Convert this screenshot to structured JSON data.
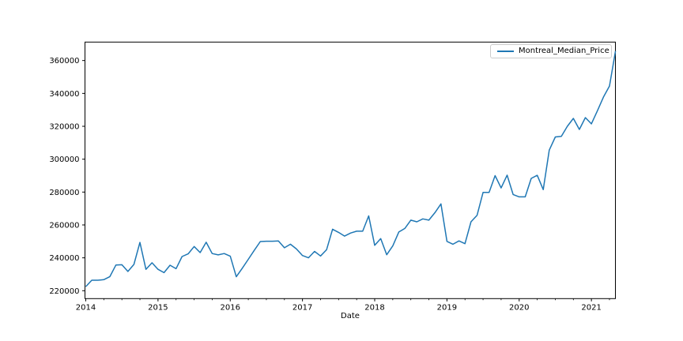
{
  "figure": {
    "background_color": "#ffffff",
    "spine_color": "#000000"
  },
  "legend": {
    "label": "Montreal_Median_Price",
    "position": "upper right",
    "border_color": "#cccccc"
  },
  "chart_data": {
    "type": "line",
    "title": "",
    "xlabel": "Date",
    "ylabel": "",
    "grid": false,
    "legend_position": "upper right",
    "line_color": "#1f77b4",
    "ylim": [
      215000,
      371000
    ],
    "yticks": [
      220000,
      240000,
      260000,
      280000,
      300000,
      320000,
      340000,
      360000
    ],
    "xticks": [
      "2014",
      "2015",
      "2016",
      "2017",
      "2018",
      "2019",
      "2020",
      "2021"
    ],
    "x_minor_tick_interval_months": 3,
    "series": [
      {
        "name": "Montreal_Median_Price",
        "x": [
          "2014-01",
          "2014-02",
          "2014-03",
          "2014-04",
          "2014-05",
          "2014-06",
          "2014-07",
          "2014-08",
          "2014-09",
          "2014-10",
          "2014-11",
          "2014-12",
          "2015-01",
          "2015-02",
          "2015-03",
          "2015-04",
          "2015-05",
          "2015-06",
          "2015-07",
          "2015-08",
          "2015-09",
          "2015-10",
          "2015-11",
          "2015-12",
          "2016-01",
          "2016-02",
          "2016-03",
          "2016-04",
          "2016-05",
          "2016-06",
          "2016-07",
          "2016-08",
          "2016-09",
          "2016-10",
          "2016-11",
          "2016-12",
          "2017-01",
          "2017-02",
          "2017-03",
          "2017-04",
          "2017-05",
          "2017-06",
          "2017-07",
          "2017-08",
          "2017-09",
          "2017-10",
          "2017-11",
          "2017-12",
          "2018-01",
          "2018-02",
          "2018-03",
          "2018-04",
          "2018-05",
          "2018-06",
          "2018-07",
          "2018-08",
          "2018-09",
          "2018-10",
          "2018-11",
          "2018-12",
          "2019-01",
          "2019-02",
          "2019-03",
          "2019-04",
          "2019-05",
          "2019-06",
          "2019-07",
          "2019-08",
          "2019-09",
          "2019-10",
          "2019-11",
          "2019-12",
          "2020-01",
          "2020-02",
          "2020-03",
          "2020-04",
          "2020-05",
          "2020-06",
          "2020-07",
          "2020-08",
          "2020-09",
          "2020-10",
          "2020-11",
          "2020-12",
          "2021-01",
          "2021-02",
          "2021-03",
          "2021-04",
          "2021-05"
        ],
        "values": [
          222500,
          226400,
          226400,
          226700,
          228600,
          235600,
          235800,
          231700,
          236000,
          249400,
          233000,
          237000,
          233000,
          231000,
          235500,
          233400,
          240800,
          242400,
          246900,
          243200,
          249500,
          242600,
          241800,
          242600,
          241000,
          228500,
          233700,
          239100,
          244600,
          249900,
          250100,
          250100,
          250300,
          246100,
          248300,
          245400,
          241400,
          240000,
          243900,
          241100,
          244900,
          257400,
          255500,
          253200,
          255100,
          256200,
          256200,
          265500,
          247600,
          251700,
          241900,
          247300,
          255700,
          257900,
          262900,
          261900,
          263700,
          262900,
          267500,
          272800,
          250000,
          248300,
          250300,
          248600,
          261900,
          265900,
          279800,
          279800,
          290000,
          282500,
          290300,
          278500,
          277100,
          277100,
          288300,
          290200,
          281500,
          305500,
          313500,
          313900,
          320000,
          324800,
          318100,
          325300,
          321500,
          329500,
          337800,
          344500,
          365800
        ]
      }
    ]
  }
}
